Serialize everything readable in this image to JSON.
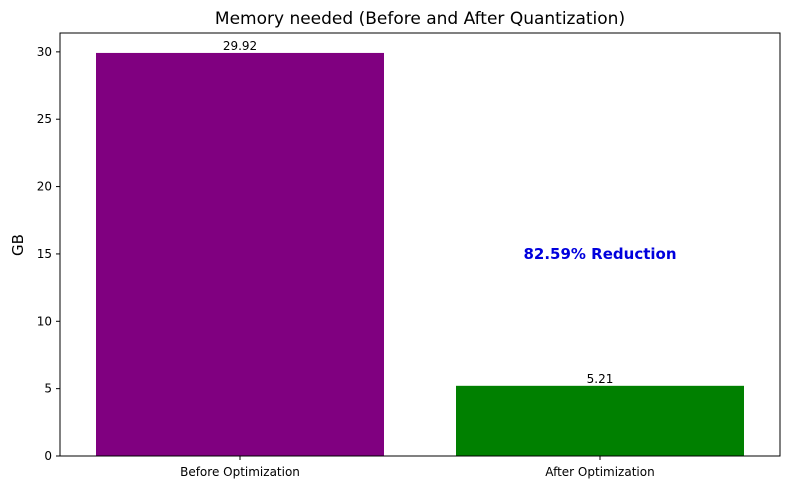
{
  "chart_data": {
    "type": "bar",
    "title": "Memory needed (Before and After Quantization)",
    "xlabel": "",
    "ylabel": "GB",
    "categories": [
      "Before Optimization",
      "After Optimization"
    ],
    "values": [
      29.92,
      5.21
    ],
    "data_labels": [
      "29.92",
      "5.21"
    ],
    "colors": [
      "#800080",
      "#008000"
    ],
    "ylim": [
      0,
      31.4
    ],
    "yticks": [
      0,
      5,
      10,
      15,
      20,
      25,
      30
    ],
    "grid": false,
    "annotation": {
      "text": "82.59% Reduction",
      "x_category_index": 1,
      "y": 15,
      "color": "#0000dd"
    }
  }
}
